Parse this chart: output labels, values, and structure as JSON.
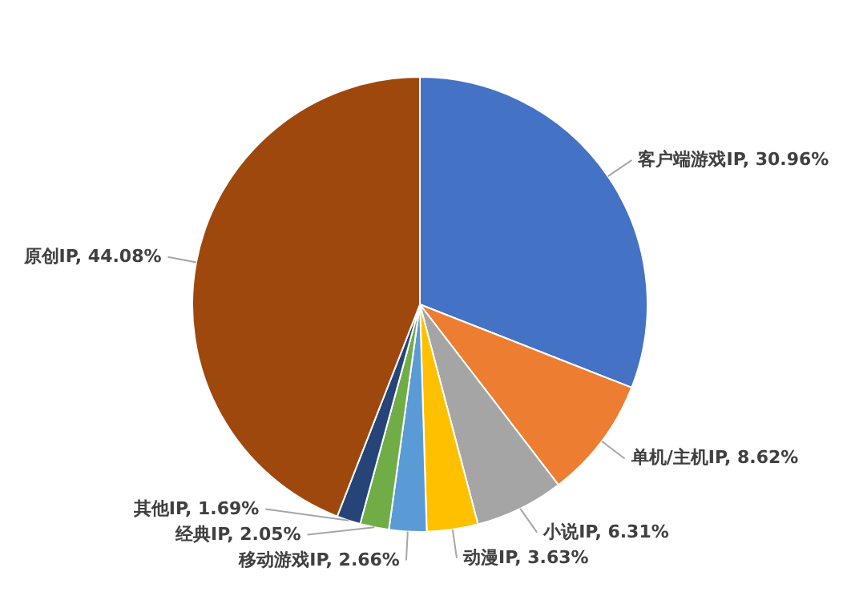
{
  "chart_data": {
    "type": "pie",
    "categories": [
      "客户端游戏IP",
      "单机/主机IP",
      "小说IP",
      "动漫IP",
      "移动游戏IP",
      "经典IP",
      "其他IP",
      "原创IP"
    ],
    "values": [
      30.96,
      8.62,
      6.31,
      3.63,
      2.66,
      2.05,
      1.69,
      44.08
    ],
    "colors": [
      "#4472c4",
      "#ed7d31",
      "#a5a5a5",
      "#ffc000",
      "#5b9bd5",
      "#70ad47",
      "#264478",
      "#9e480e"
    ],
    "value_labels": [
      "30.96%",
      "8.62%",
      "6.31%",
      "3.63%",
      "2.66%",
      "2.05%",
      "1.69%",
      "44.08%"
    ]
  }
}
